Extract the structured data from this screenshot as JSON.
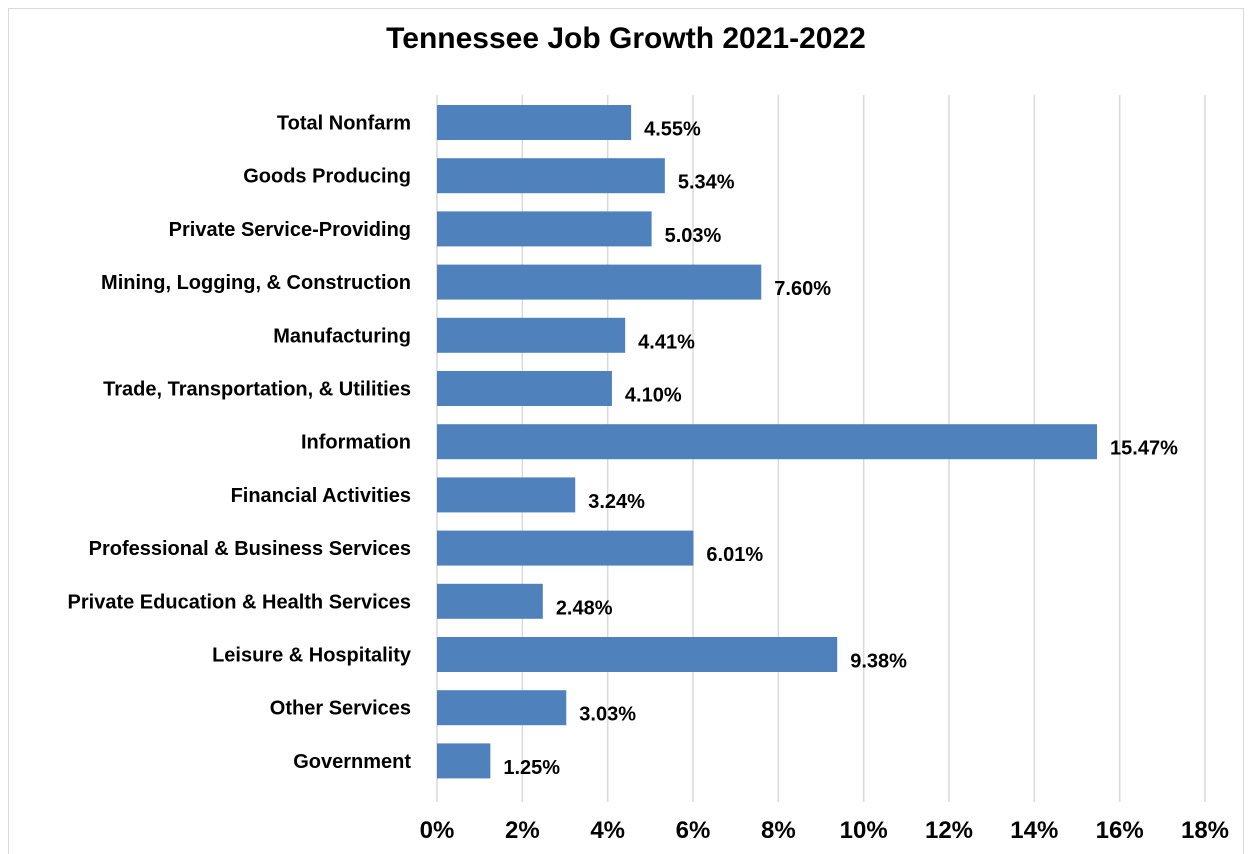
{
  "colors": {
    "bar": "#4f81bd",
    "gridline": "#d9d9d9",
    "text": "#000000",
    "background": "#ffffff"
  },
  "chart_data": {
    "type": "bar",
    "orientation": "horizontal",
    "title": "Tennessee Job Growth 2021-2022",
    "xlabel": "",
    "ylabel": "",
    "categories": [
      "Total Nonfarm",
      "Goods Producing",
      "Private Service-Providing",
      "Mining, Logging, & Construction",
      "Manufacturing",
      "Trade, Transportation, & Utilities",
      "Information",
      "Financial Activities",
      "Professional & Business Services",
      "Private Education & Health Services",
      "Leisure & Hospitality",
      "Other Services",
      "Government"
    ],
    "values": [
      4.55,
      5.34,
      5.03,
      7.6,
      4.41,
      4.1,
      15.47,
      3.24,
      6.01,
      2.48,
      9.38,
      3.03,
      1.25
    ],
    "value_labels": [
      "4.55%",
      "5.34%",
      "5.03%",
      "7.60%",
      "4.41%",
      "4.10%",
      "15.47%",
      "3.24%",
      "6.01%",
      "2.48%",
      "9.38%",
      "3.03%",
      "1.25%"
    ],
    "xlim": [
      0,
      18
    ],
    "x_ticks": [
      0,
      2,
      4,
      6,
      8,
      10,
      12,
      14,
      16,
      18
    ],
    "x_tick_labels": [
      "0%",
      "2%",
      "4%",
      "6%",
      "8%",
      "10%",
      "12%",
      "14%",
      "16%",
      "18%"
    ],
    "grid": "vertical",
    "legend": "none"
  }
}
